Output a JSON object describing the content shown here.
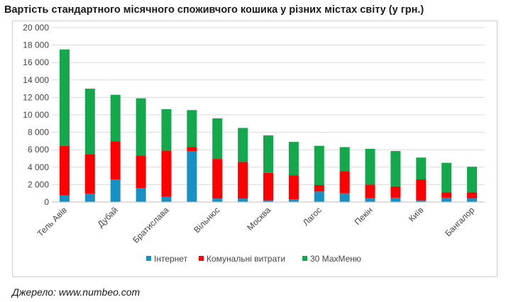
{
  "title": "Вартість стандартного місячного споживчого кошика у різних містах світу (у грн.)",
  "source": "Джерело: www.numbeo.com",
  "chart_data": {
    "type": "bar",
    "stacked": true,
    "categories": [
      "Тель Авів",
      "",
      "Дубай",
      "",
      "Братислава",
      "",
      "Вільнюс",
      "",
      "Москва",
      "",
      "Лагос",
      "",
      "Пекін",
      "",
      "Київ",
      "",
      "Бангалор"
    ],
    "series": [
      {
        "name": "Інтернет",
        "color": "#1791c4",
        "values": [
          750,
          950,
          2600,
          1600,
          600,
          5850,
          400,
          400,
          200,
          300,
          1200,
          1000,
          450,
          500,
          200,
          500,
          450
        ]
      },
      {
        "name": "Комунальні витрати",
        "color": "#ff0000",
        "values": [
          5700,
          4550,
          4350,
          3750,
          5300,
          450,
          4550,
          4200,
          3150,
          2750,
          750,
          2550,
          1550,
          1300,
          2400,
          600,
          650
        ]
      },
      {
        "name": "30 МахМеню",
        "color": "#13a84b",
        "values": [
          11050,
          7500,
          5350,
          6550,
          4750,
          4250,
          4650,
          3900,
          4300,
          3850,
          4500,
          2750,
          4100,
          4050,
          2500,
          3400,
          2950
        ]
      }
    ],
    "ylim": [
      0,
      20000
    ],
    "yticks": [
      "0",
      "2 000",
      "4 000",
      "6 000",
      "8 000",
      "10 000",
      "12 000",
      "14 000",
      "16 000",
      "18 000",
      "20 000"
    ],
    "ytick_values": [
      0,
      2000,
      4000,
      6000,
      8000,
      10000,
      12000,
      14000,
      16000,
      18000,
      20000
    ],
    "grid": true,
    "legend_position": "bottom"
  }
}
